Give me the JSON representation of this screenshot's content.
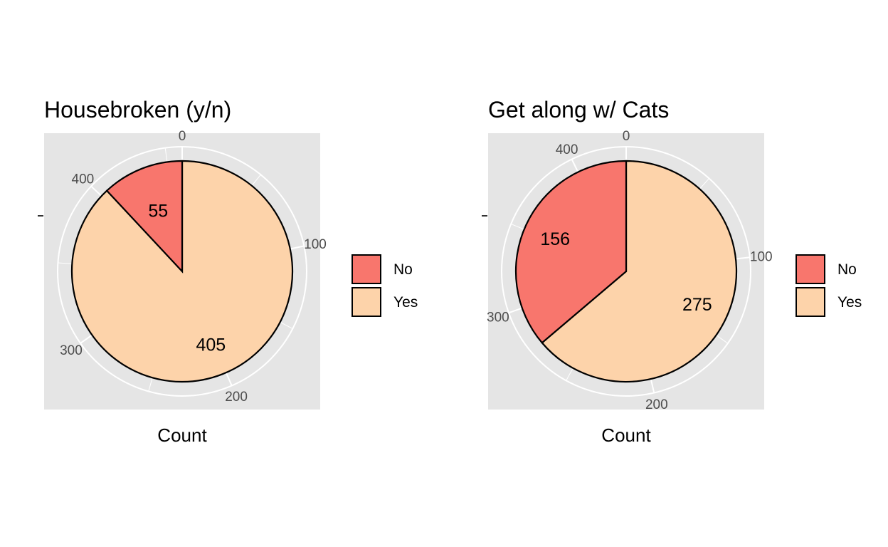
{
  "chart_data": [
    {
      "type": "pie",
      "title": "Housebroken (y/n)",
      "xlabel": "Count",
      "ylabel": "",
      "categories": [
        "No",
        "Yes"
      ],
      "values": [
        55,
        405
      ],
      "colors": [
        "#f8766d",
        "#fdd3aa"
      ],
      "radial_ticks": [
        "0",
        "100",
        "200",
        "300",
        "400"
      ],
      "radial_tick_values": [
        0,
        100,
        200,
        300,
        400
      ],
      "legend": {
        "position": "right",
        "items": [
          "No",
          "Yes"
        ]
      },
      "grid": true
    },
    {
      "type": "pie",
      "title": "Get along w/ Cats",
      "xlabel": "Count",
      "ylabel": "",
      "categories": [
        "No",
        "Yes"
      ],
      "values": [
        156,
        275
      ],
      "colors": [
        "#f8766d",
        "#fdd3aa"
      ],
      "radial_ticks": [
        "0",
        "100",
        "200",
        "300",
        "400"
      ],
      "radial_tick_values": [
        0,
        100,
        200,
        300,
        400
      ],
      "legend": {
        "position": "right",
        "items": [
          "No",
          "Yes"
        ]
      },
      "grid": true
    }
  ]
}
